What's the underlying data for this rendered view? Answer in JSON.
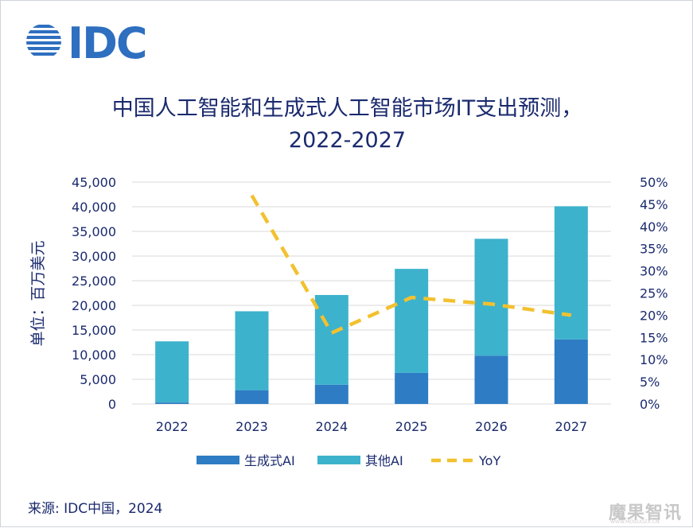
{
  "brand": {
    "logo_text": "IDC",
    "logo_color": "#2e6fc0"
  },
  "title_line1": "中国人工智能和生成式人工智能市场IT支出预测，",
  "title_line2": "2022-2027",
  "source": "来源: IDC中国，2024",
  "watermark": {
    "main": "魔果智讯",
    "sub": "WWW.MOGUOZX.CN"
  },
  "colors": {
    "genai": "#2e7cc4",
    "other": "#3db2cc",
    "yoy": "#f2c12e",
    "text": "#1a2a6e",
    "grid": "#d9d9d9"
  },
  "chart_data": {
    "type": "bar",
    "stacked": true,
    "categories": [
      "2022",
      "2023",
      "2024",
      "2025",
      "2026",
      "2027"
    ],
    "series": [
      {
        "name": "生成式AI",
        "values": [
          300,
          2800,
          3900,
          6300,
          9800,
          13100
        ]
      },
      {
        "name": "其他AI",
        "values": [
          12400,
          16000,
          18200,
          21100,
          23700,
          27000
        ]
      }
    ],
    "line_series": {
      "name": "YoY",
      "axis": "right",
      "style": "dashed",
      "values": [
        null,
        0.47,
        0.16,
        0.24,
        0.225,
        0.2
      ]
    },
    "ylabel": "单位：百万美元",
    "ylim": [
      0,
      45000
    ],
    "yticks": [
      "0",
      "5,000",
      "10,000",
      "15,000",
      "20,000",
      "25,000",
      "30,000",
      "35,000",
      "40,000",
      "45,000"
    ],
    "y2lim": [
      0,
      0.5
    ],
    "y2ticks": [
      "0%",
      "5%",
      "10%",
      "15%",
      "20%",
      "25%",
      "30%",
      "35%",
      "40%",
      "45%",
      "50%"
    ],
    "grid": true,
    "legend_position": "bottom"
  }
}
